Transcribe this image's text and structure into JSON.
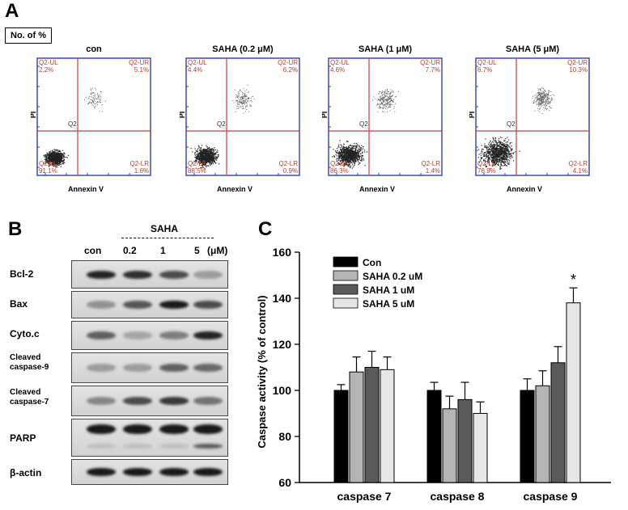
{
  "panel_a": {
    "letter": "A",
    "box_label": "No. of %",
    "plots": [
      {
        "title": "con",
        "ul_label": "Q2-UL",
        "ul_val": "2.2%",
        "ur_label": "Q2-UR",
        "ur_val": "5.1%",
        "lr_label": "Q2-LR",
        "lr_val": "1.6%",
        "ll_label": "Q2-LL",
        "ll_val": "91.1%",
        "center": "Q2"
      },
      {
        "title": "SAHA (0.2 μM)",
        "ul_label": "Q2-UL",
        "ul_val": "4.4%",
        "ur_label": "Q2-UR",
        "ur_val": "6.2%",
        "lr_label": "Q2-LR",
        "lr_val": "0.9%",
        "ll_label": "Q2-LL",
        "ll_val": "88.5%",
        "center": "Q2"
      },
      {
        "title": "SAHA (1 μM)",
        "ul_label": "Q2-UL",
        "ul_val": "4.6%",
        "ur_label": "Q2-UR",
        "ur_val": "7.7%",
        "lr_label": "Q2-LR",
        "lr_val": "1.4%",
        "ll_label": "Q2-LL",
        "ll_val": "86.3%",
        "center": "Q2"
      },
      {
        "title": "SAHA (5 μM)",
        "ul_label": "Q2-UL",
        "ul_val": "6.7%",
        "ur_label": "Q2-UR",
        "ur_val": "10.3%",
        "lr_label": "Q2-LR",
        "lr_val": "4.1%",
        "ll_label": "Q2-LL",
        "ll_val": "78.9%",
        "center": "Q2"
      }
    ],
    "xlabel": "Annexin V",
    "ylabel": "PI"
  },
  "panel_b": {
    "letter": "B",
    "treatment": "SAHA",
    "lanes": [
      "con",
      "0.2",
      "1",
      "5"
    ],
    "unit": "(μM)",
    "rows": [
      {
        "label": "Bcl-2",
        "intensity": [
          0.9,
          0.85,
          0.7,
          0.3
        ]
      },
      {
        "label": "Bax",
        "intensity": [
          0.35,
          0.65,
          0.95,
          0.7
        ]
      },
      {
        "label": "Cyto.c",
        "intensity": [
          0.6,
          0.25,
          0.45,
          0.9
        ]
      },
      {
        "label_line1": "Cleaved",
        "label_line2": "caspase-9",
        "intensity": [
          0.3,
          0.3,
          0.6,
          0.55
        ]
      },
      {
        "label_line1": "Cleaved",
        "label_line2": "caspase-7",
        "intensity": [
          0.4,
          0.7,
          0.8,
          0.5
        ]
      },
      {
        "label": "PARP",
        "intensity": [
          0.95,
          0.95,
          0.95,
          0.95
        ]
      },
      {
        "label": "β-actin",
        "intensity": [
          0.95,
          0.95,
          0.95,
          0.95
        ]
      }
    ]
  },
  "chart_data": {
    "type": "bar",
    "panel_letter": "C",
    "title": "",
    "xlabel": "",
    "ylabel": "Caspase activity (% of control)",
    "categories": [
      "caspase 7",
      "caspase 8",
      "caspase 9"
    ],
    "ylim": [
      60,
      160
    ],
    "yticks": [
      60,
      80,
      100,
      120,
      140,
      160
    ],
    "legend_position": "top-left",
    "series": [
      {
        "name": "Con",
        "color": "#000000",
        "values": [
          100,
          100,
          100
        ],
        "errors": [
          2.5,
          3.5,
          5
        ]
      },
      {
        "name": "SAHA 0.2 uM",
        "color": "#b4b4b4",
        "values": [
          108,
          92,
          102
        ],
        "errors": [
          6.5,
          5.5,
          6.5
        ]
      },
      {
        "name": "SAHA 1 uM",
        "color": "#5a5a5a",
        "values": [
          110,
          96,
          112
        ],
        "errors": [
          7,
          7.5,
          7
        ]
      },
      {
        "name": "SAHA 5 uM",
        "color": "#e6e6e6",
        "values": [
          109,
          90,
          138
        ],
        "errors": [
          5.5,
          5,
          6.5
        ]
      }
    ],
    "annotations": [
      {
        "text": "*",
        "category": "caspase 9",
        "series": "SAHA 5 uM"
      }
    ]
  }
}
